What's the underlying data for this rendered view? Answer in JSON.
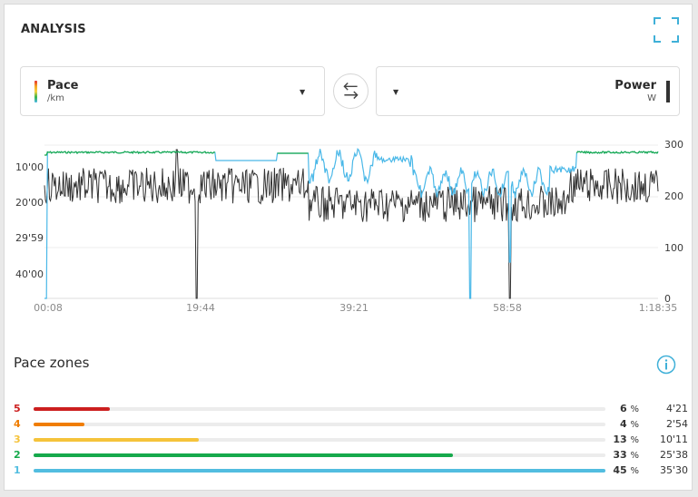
{
  "header": {
    "title": "ANALYSIS",
    "expand_icon": "expand-icon"
  },
  "left_selector": {
    "name": "Pace",
    "unit": "/km"
  },
  "right_selector": {
    "name": "Power",
    "unit": "W"
  },
  "colors": {
    "pace_line": "#4ab8e8",
    "power_line": "#333333",
    "z5": "#cc1f1f",
    "z4": "#f07d00",
    "z3": "#f5c33b",
    "z2": "#16a94c",
    "z1": "#52bde0"
  },
  "chart_data": {
    "type": "line",
    "x_ticks": [
      "00:08",
      "19:44",
      "39:21",
      "58:58",
      "1:18:35"
    ],
    "x_range_minutes": [
      0.133,
      78.583
    ],
    "left_axis": {
      "label": "",
      "ticks": [
        "10'00",
        "20'00",
        "29'59",
        "40'00"
      ],
      "inverted": true
    },
    "right_axis": {
      "label": "",
      "ticks": [
        "300",
        "200",
        "100",
        "0"
      ],
      "range": [
        0,
        300
      ]
    },
    "series": [
      {
        "values": []
      },
      {
        "values": []
      }
    ]
  },
  "zones": {
    "title": "Pace zones",
    "items": [
      {
        "zone": "5",
        "percent": 6,
        "pct_label": "6",
        "time": "4'21"
      },
      {
        "zone": "4",
        "percent": 4,
        "pct_label": "4",
        "time": "2'54"
      },
      {
        "zone": "3",
        "percent": 13,
        "pct_label": "13",
        "time": "10'11"
      },
      {
        "zone": "2",
        "percent": 33,
        "pct_label": "33",
        "time": "25'38"
      },
      {
        "zone": "1",
        "percent": 45,
        "pct_label": "45",
        "time": "35'30"
      }
    ],
    "pct_symbol": "%"
  }
}
